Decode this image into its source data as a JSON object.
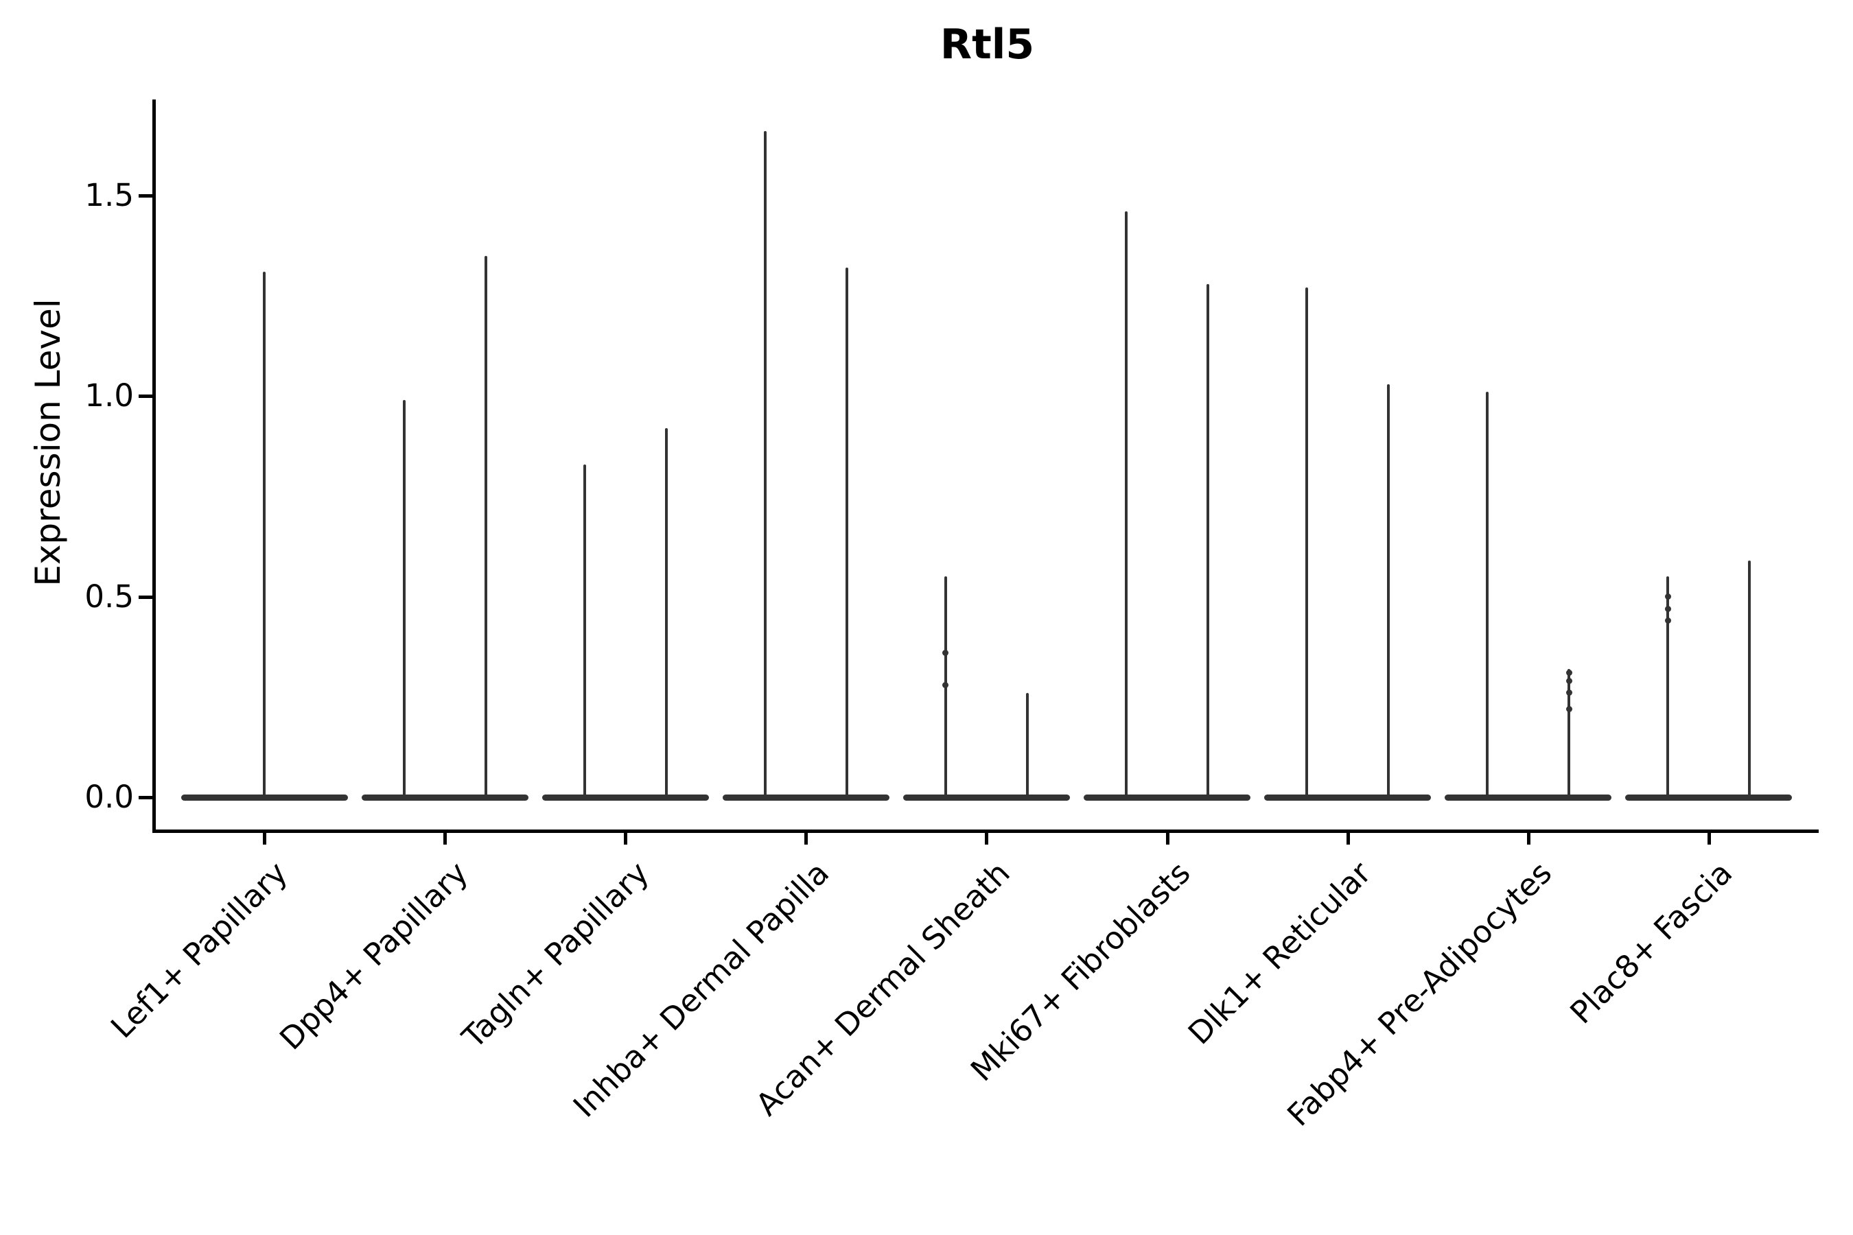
{
  "title": "Rtl5",
  "chart_data": {
    "type": "violin",
    "title": "Rtl5",
    "ylabel": "Expression Level",
    "xlabel": "",
    "ytick_labels": [
      "0.0",
      "0.5",
      "1.0",
      "1.5"
    ],
    "ytick_values": [
      0.0,
      0.5,
      1.0,
      1.5
    ],
    "ylim": [
      -0.08,
      1.74
    ],
    "grid": false,
    "legend": "none",
    "violin_color": "#333333",
    "axis_color": "#000000",
    "background_color": "#ffffff",
    "categories": [
      "Lef1+ Papillary",
      "Dpp4+ Papillary",
      "Tagln+ Papillary",
      "Inhba+ Dermal Papilla",
      "Acan+ Dermal Sheath",
      "Mki67+ Fibroblasts",
      "Dlk1+ Reticular",
      "Fabp4+ Pre-Adipocytes",
      "Plac8+ Fascia"
    ],
    "violins": [
      {
        "category": "Lef1+ Papillary",
        "spikes": [
          {
            "position": "center",
            "max": 1.31,
            "points": []
          }
        ]
      },
      {
        "category": "Dpp4+ Papillary",
        "spikes": [
          {
            "position": "left",
            "max": 0.99,
            "points": []
          },
          {
            "position": "right",
            "max": 1.35,
            "points": []
          }
        ]
      },
      {
        "category": "Tagln+ Papillary",
        "spikes": [
          {
            "position": "left",
            "max": 0.83,
            "points": []
          },
          {
            "position": "right",
            "max": 0.92,
            "points": []
          }
        ]
      },
      {
        "category": "Inhba+ Dermal Papilla",
        "spikes": [
          {
            "position": "left",
            "max": 1.66,
            "points": []
          },
          {
            "position": "right",
            "max": 1.32,
            "points": []
          }
        ]
      },
      {
        "category": "Acan+ Dermal Sheath",
        "spikes": [
          {
            "position": "left",
            "max": 0.55,
            "points": [
              0.36,
              0.28
            ]
          },
          {
            "position": "right",
            "max": 0.26,
            "points": []
          }
        ]
      },
      {
        "category": "Mki67+ Fibroblasts",
        "spikes": [
          {
            "position": "left",
            "max": 1.46,
            "points": []
          },
          {
            "position": "right",
            "max": 1.28,
            "points": []
          }
        ]
      },
      {
        "category": "Dlk1+ Reticular",
        "spikes": [
          {
            "position": "left",
            "max": 1.27,
            "points": []
          },
          {
            "position": "right",
            "max": 1.03,
            "points": []
          }
        ]
      },
      {
        "category": "Fabp4+ Pre-Adipocytes",
        "spikes": [
          {
            "position": "left",
            "max": 1.01,
            "points": []
          },
          {
            "position": "right",
            "max": 0.32,
            "points": [
              0.31,
              0.29,
              0.26,
              0.22
            ]
          }
        ]
      },
      {
        "category": "Plac8+ Fascia",
        "spikes": [
          {
            "position": "left",
            "max": 0.55,
            "points": [
              0.5,
              0.47,
              0.44
            ]
          },
          {
            "position": "right",
            "max": 0.59,
            "points": []
          }
        ]
      }
    ]
  }
}
